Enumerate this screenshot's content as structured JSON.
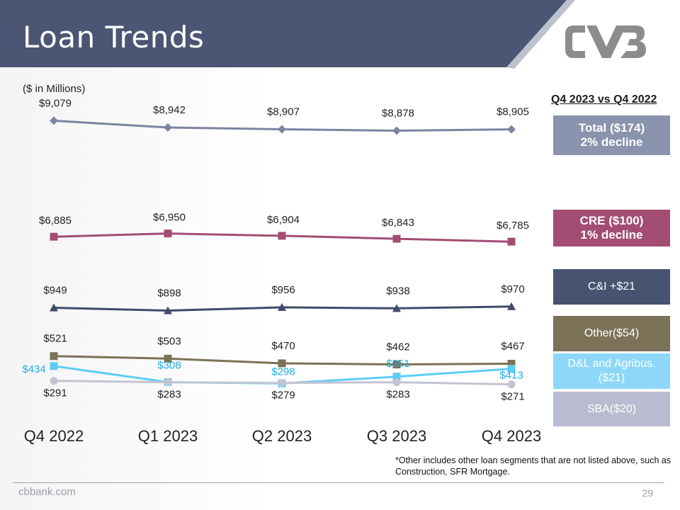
{
  "slide": {
    "title": "Loan Trends",
    "units_note": "($ in Millions)",
    "comparison_title": "Q4 2023 vs Q4 2022",
    "footnote": "*Other includes other loan segments that are not listed above, such as Construction, SFR Mortgage.",
    "footer_site": "cbbank.com",
    "page_number": "29"
  },
  "pills": [
    {
      "text": "Total ($174)\n2% decline",
      "color": "#8a93ae"
    },
    {
      "text": "CRE ($100)\n1% decline",
      "color": "#a34d74"
    },
    {
      "text": "C&I +$21",
      "color": "#465371"
    },
    {
      "text": "Other($54)",
      "color": "#7b7257"
    },
    {
      "text": "D&L and Agribus.\n($21)",
      "color": "#8dd8f8"
    },
    {
      "text": "SBA($20)",
      "color": "#b9bbd0"
    }
  ],
  "colors": {
    "header": "#4a5673",
    "logo": "#8c8c8c",
    "axis_text": "#222222"
  },
  "chart_data": {
    "type": "line",
    "categories": [
      "Q4 2022",
      "Q1 2023",
      "Q2 2023",
      "Q3 2023",
      "Q4 2023"
    ],
    "series": [
      {
        "name": "Total",
        "values": [
          9079,
          8942,
          8907,
          8878,
          8905
        ],
        "labels": [
          "$9,079",
          "$8,942",
          "$8,907",
          "$8,878",
          "$8,905"
        ],
        "color": "#7c84a0",
        "marker": "diamond",
        "label_color": "#222222"
      },
      {
        "name": "CRE",
        "values": [
          6885,
          6950,
          6904,
          6843,
          6785
        ],
        "labels": [
          "$6,885",
          "$6,950",
          "$6,904",
          "$6,843",
          "$6,785"
        ],
        "color": "#a34d74",
        "marker": "square",
        "label_color": "#222222"
      },
      {
        "name": "C&I",
        "values": [
          949,
          898,
          956,
          938,
          970
        ],
        "labels": [
          "$949",
          "$898",
          "$956",
          "$938",
          "$970"
        ],
        "color": "#3f4b68",
        "marker": "triangle",
        "label_color": "#222222"
      },
      {
        "name": "Other",
        "values": [
          521,
          503,
          470,
          462,
          467
        ],
        "labels": [
          "$521",
          "$503",
          "$470",
          "$462",
          "$467"
        ],
        "color": "#7b7257",
        "marker": "square",
        "label_color": "#222222"
      },
      {
        "name": "D&L and Agribus.",
        "values": [
          434,
          308,
          298,
          351,
          413
        ],
        "labels": [
          "$434",
          "$308",
          "$298",
          "$351",
          "$413"
        ],
        "color": "#5ccdf6",
        "marker": "square",
        "label_color": "#22aee6"
      },
      {
        "name": "SBA",
        "values": [
          291,
          283,
          279,
          283,
          271
        ],
        "labels": [
          "$291",
          "$283",
          "$279",
          "$283",
          "$271"
        ],
        "color": "#c3c4d2",
        "marker": "circle",
        "label_color": "#222222"
      }
    ]
  }
}
